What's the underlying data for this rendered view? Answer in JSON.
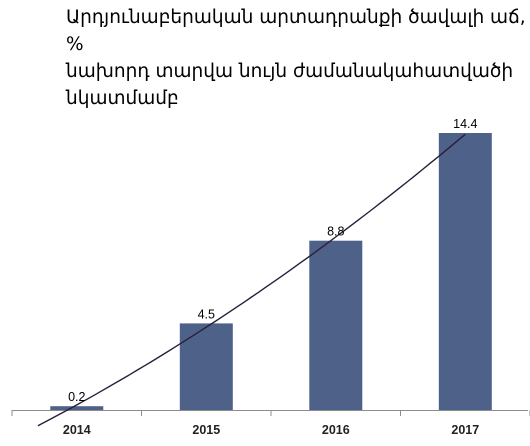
{
  "chart_data": {
    "type": "bar",
    "title_lines": [
      "Արդյունաբերական արտադրանքի ծավալի աճ, %",
      "նախորդ տարվա նույն ժամանակահատվածի",
      "նկատմամբ"
    ],
    "categories": [
      "2014",
      "2015",
      "2016",
      "2017"
    ],
    "values": [
      0.2,
      4.5,
      8.8,
      14.4
    ],
    "data_labels": [
      "0.2",
      "4.5",
      "8.8",
      "14.4"
    ],
    "ylim": [
      0,
      14.4
    ],
    "trendline": "polynomial",
    "grid": false,
    "legend": false,
    "colors": {
      "bar": "#4e6189",
      "trendline": "#2a1f3a",
      "axis": "#8c8c8c"
    }
  }
}
